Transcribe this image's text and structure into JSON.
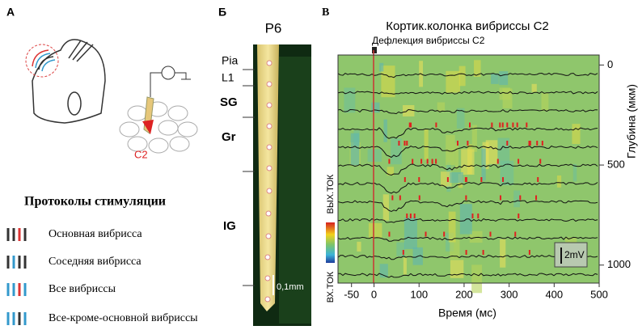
{
  "panel_a": {
    "label": "A",
    "electrode_label": "C2",
    "protocols_title": "Протоколы стимуляции",
    "protocols": [
      "Основная вибрисса",
      "Соседняя вибрисса",
      "Все вибриссы",
      "Все-кроме-основной вибриссы"
    ]
  },
  "panel_b": {
    "label": "Б",
    "title": "P6",
    "layers": [
      "Pia",
      "L1",
      "SG",
      "Gr",
      "IG"
    ],
    "scale": "0,1mm"
  },
  "panel_c": {
    "label": "В",
    "title": "Кортик.колонка вибриссы C2",
    "annotation": "Дефлекция вибриссы C2",
    "xlabel": "Время (мс)",
    "ylabel": "Глубина (мкм)",
    "xlim": [
      -80,
      500
    ],
    "xticks": [
      -50,
      0,
      100,
      200,
      300,
      400,
      500
    ],
    "ylim": [
      -50,
      1090
    ],
    "yticks": [
      0,
      500,
      1000
    ],
    "colorbar_top": "ВЫХ.ТОК",
    "colorbar_bottom": "ВХ.ТОК",
    "scale_bar": "2mV"
  }
}
